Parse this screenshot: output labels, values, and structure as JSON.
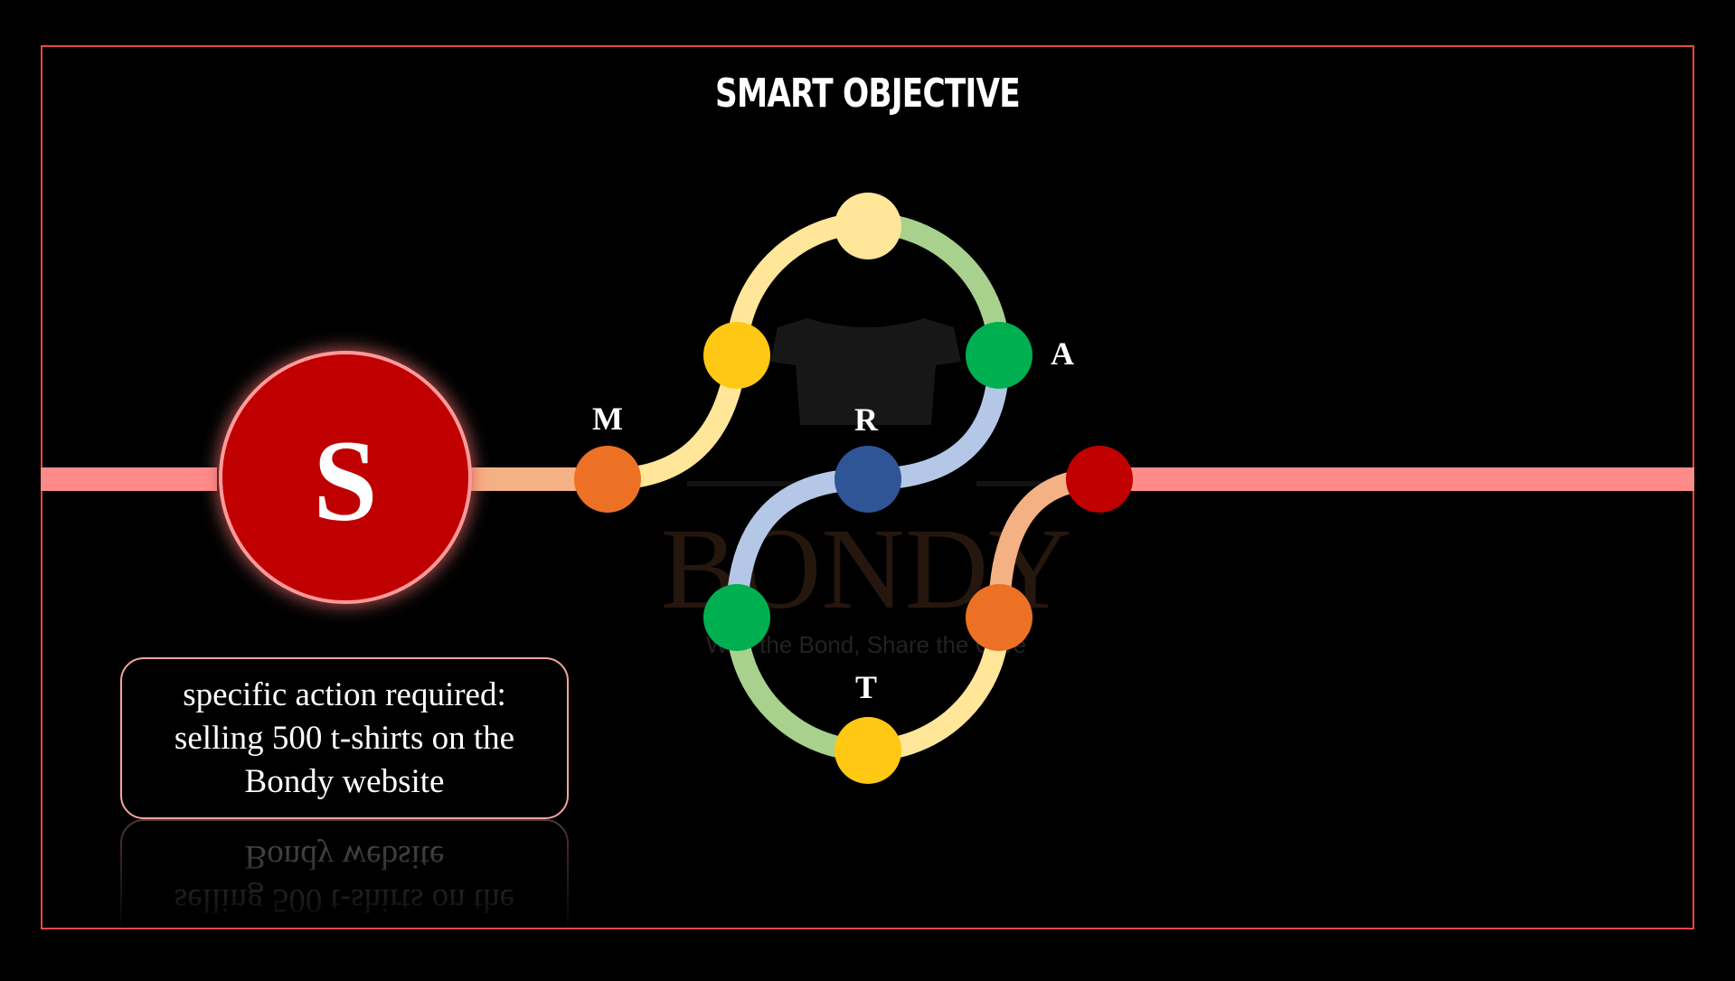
{
  "title": "SMART OBJECTIVE",
  "center_letter": "S",
  "stages": {
    "m": "M",
    "r": "R",
    "a": "A",
    "t": "T"
  },
  "callout": {
    "line1": "specific action required:",
    "line2": "selling 500 t-shirts on the",
    "line3": "Bondy website"
  },
  "watermark": {
    "brand": "BONDY",
    "tagline": "With the Bond, Share the Care"
  },
  "colors": {
    "frame": "#e8483f",
    "main_line": "#ff8a8a",
    "s_circle": "#c00000",
    "orange": "#ed7125",
    "yellow": "#ffc814",
    "light_yellow": "#ffe699",
    "green": "#00b050",
    "light_green": "#a9d18e",
    "blue": "#2f5597",
    "light_blue": "#b4c7e7",
    "peach": "#f4b183",
    "red": "#c00000"
  }
}
